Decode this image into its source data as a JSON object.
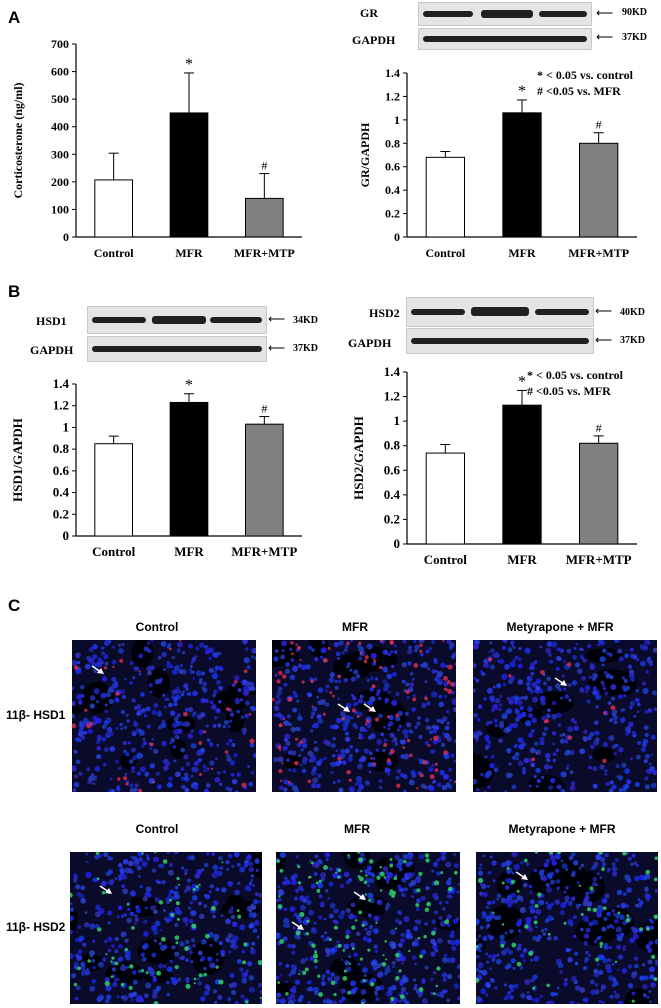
{
  "panels": {
    "A": "A",
    "B": "B",
    "C": "C"
  },
  "blots": {
    "GR": {
      "label": "GR",
      "size": "90KD"
    },
    "GAPDH_A": {
      "label": "GAPDH",
      "size": "37KD"
    },
    "HSD1": {
      "label": "HSD1",
      "size": "34KD"
    },
    "GAPDH_B1": {
      "label": "GAPDH",
      "size": "37KD"
    },
    "HSD2": {
      "label": "HSD2",
      "size": "40KD"
    },
    "GAPDH_B2": {
      "label": "GAPDH",
      "size": "37KD"
    }
  },
  "legends": {
    "A": {
      "line1": "* < 0.05 vs. control",
      "line2": "# <0.05 vs. MFR"
    },
    "B": {
      "line1": "* < 0.05 vs. control",
      "line2": "# <0.05 vs. MFR"
    }
  },
  "chart_data": [
    {
      "id": "corticosterone",
      "type": "bar",
      "categories": [
        "Control",
        "MFR",
        "MFR+MTP"
      ],
      "values": [
        207,
        450,
        140
      ],
      "errors": [
        97,
        145,
        90
      ],
      "marks": [
        "",
        "*",
        "#"
      ],
      "colors": [
        "#ffffff",
        "#000000",
        "#808080"
      ],
      "ylabel": "Corticosterone (ng/ml)",
      "ylim": [
        0,
        700
      ],
      "yticks": [
        "0",
        "100",
        "200",
        "300",
        "400",
        "500",
        "600",
        "700"
      ]
    },
    {
      "id": "gr",
      "type": "bar",
      "categories": [
        "Control",
        "MFR",
        "MFR+MTP"
      ],
      "values": [
        0.68,
        1.06,
        0.8
      ],
      "errors": [
        0.05,
        0.11,
        0.09
      ],
      "marks": [
        "",
        "*",
        "#"
      ],
      "colors": [
        "#ffffff",
        "#000000",
        "#808080"
      ],
      "ylabel": "GR/GAPDH",
      "ylim": [
        0,
        1.4
      ],
      "yticks": [
        "0",
        "0.2",
        "0.4",
        "0.6",
        "0.8",
        "1",
        "1.2",
        "1.4"
      ]
    },
    {
      "id": "hsd1",
      "type": "bar",
      "categories": [
        "Control",
        "MFR",
        "MFR+MTP"
      ],
      "values": [
        0.85,
        1.23,
        1.03
      ],
      "errors": [
        0.07,
        0.08,
        0.07
      ],
      "marks": [
        "",
        "*",
        "#"
      ],
      "colors": [
        "#ffffff",
        "#000000",
        "#808080"
      ],
      "ylabel": "HSD1/GAPDH",
      "ylim": [
        0,
        1.4
      ],
      "yticks": [
        "0",
        "0.2",
        "0.4",
        "0.6",
        "0.8",
        "1",
        "1.2",
        "1.4"
      ]
    },
    {
      "id": "hsd2",
      "type": "bar",
      "categories": [
        "Control",
        "MFR",
        "MFR+MTP"
      ],
      "values": [
        0.74,
        1.13,
        0.82
      ],
      "errors": [
        0.07,
        0.12,
        0.06
      ],
      "marks": [
        "",
        "*",
        "#"
      ],
      "colors": [
        "#ffffff",
        "#000000",
        "#808080"
      ],
      "ylabel": "HSD2/GAPDH",
      "ylim": [
        0,
        1.4
      ],
      "yticks": [
        "0",
        "0.2",
        "0.4",
        "0.6",
        "0.8",
        "1",
        "1.2",
        "1.4"
      ]
    }
  ],
  "microscopy": {
    "row1_label": "11β- HSD1",
    "row2_label": "11β- HSD2",
    "row1_titles": [
      "Control",
      "MFR",
      "Metyrapone + MFR"
    ],
    "row2_titles": [
      "Control",
      "MFR",
      "Metyrapone + MFR"
    ],
    "row1_stain": "#e23050",
    "row2_stain": "#30e070"
  }
}
